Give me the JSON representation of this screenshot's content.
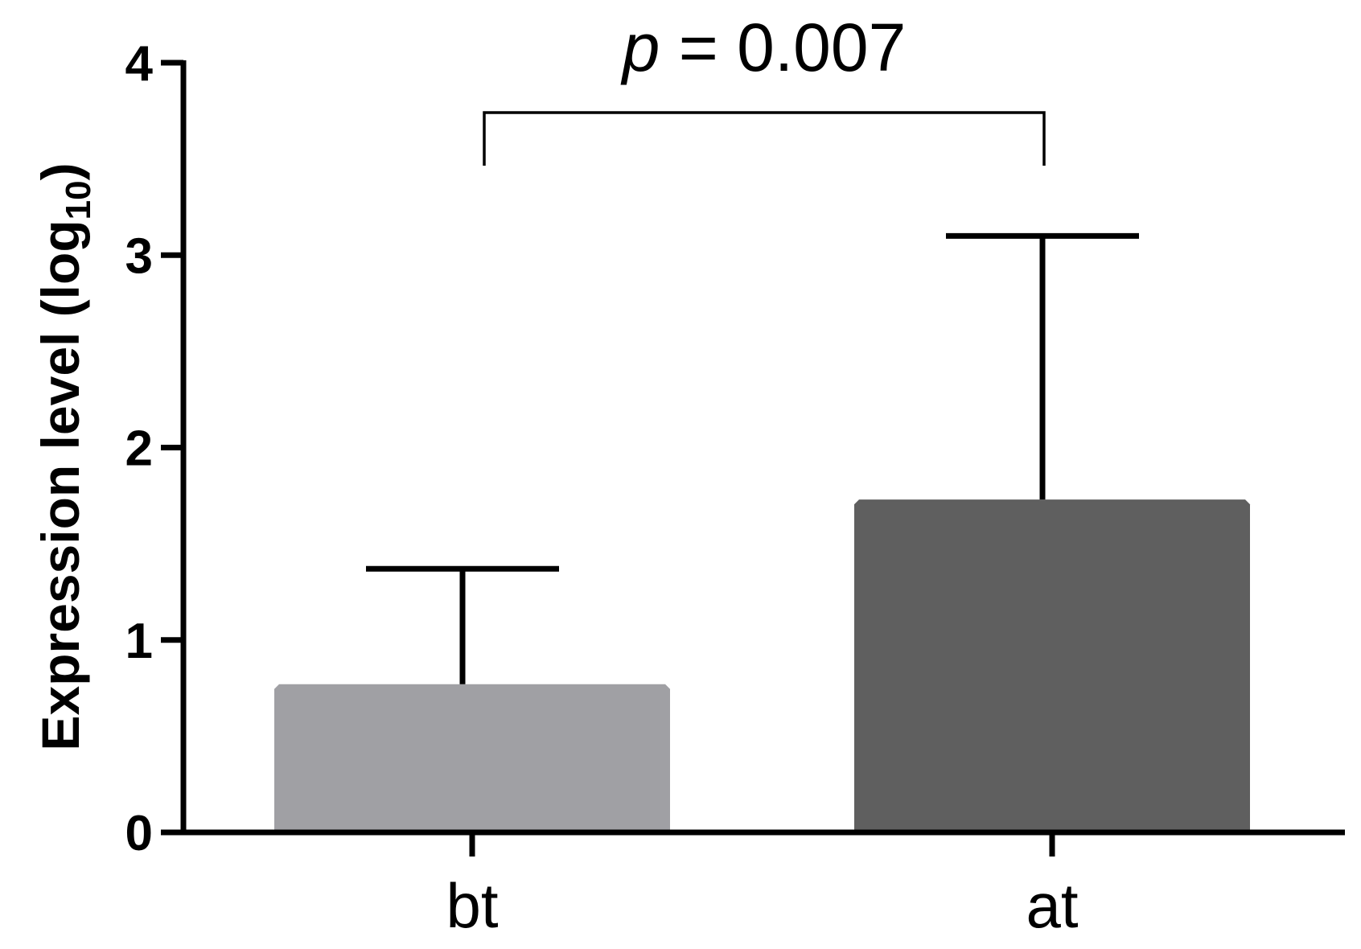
{
  "chart_data": {
    "type": "bar",
    "categories": [
      "bt",
      "at"
    ],
    "values": [
      0.77,
      1.73
    ],
    "errors_upper": [
      1.37,
      3.1
    ],
    "colors": [
      "#a0a0a4",
      "#5f5f5f"
    ],
    "ylabel": {
      "main": "Expression level (log",
      "sub": "10",
      "close": ")"
    },
    "ylim": [
      0,
      4
    ],
    "yticks": [
      0,
      1,
      2,
      3,
      4
    ],
    "ytick_labels": [
      "0",
      "1",
      "2",
      "3",
      "4"
    ],
    "grid": false,
    "annotation": {
      "p_symbol": "p",
      "p_text": " = 0.007",
      "between": [
        "bt",
        "at"
      ]
    }
  }
}
